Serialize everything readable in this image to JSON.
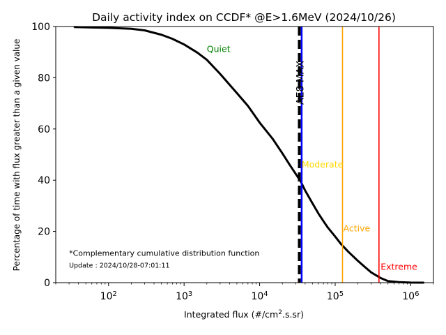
{
  "chart_data": {
    "type": "line",
    "title": "Daily activity index on CCDF* @E>1.6MeV (2024/10/26)",
    "xlabel_main": "Integrated flux (#/cm",
    "xlabel_sup": "2",
    "xlabel_tail": ".s.sr)",
    "ylabel": "Percentage of time with flux greater than a given value",
    "x_scale": "log",
    "xlim": [
      20,
      2000000
    ],
    "ylim": [
      0,
      100
    ],
    "y_ticks": [
      "0",
      "20",
      "40",
      "60",
      "80",
      "100"
    ],
    "x_ticks": [
      {
        "value": 100,
        "base": "10",
        "exp": "2"
      },
      {
        "value": 1000,
        "base": "10",
        "exp": "3"
      },
      {
        "value": 10000,
        "base": "10",
        "exp": "4"
      },
      {
        "value": 100000,
        "base": "10",
        "exp": "5"
      },
      {
        "value": 1000000,
        "base": "10",
        "exp": "6"
      }
    ],
    "grid": false,
    "series": [
      {
        "color": "#000000",
        "x": [
          35,
          100,
          200,
          300,
          500,
          700,
          1000,
          1500,
          2000,
          3000,
          5000,
          7000,
          10000,
          15000,
          20000,
          25000,
          30000,
          35000,
          40000,
          50000,
          60000,
          70000,
          80000,
          100000,
          120000,
          150000,
          200000,
          250000,
          300000,
          400000,
          500000,
          700000,
          1000000,
          1500000
        ],
        "y": [
          99.8,
          99.5,
          99.1,
          98.5,
          96.8,
          95.2,
          93.0,
          89.8,
          87.0,
          81.5,
          74.0,
          69.0,
          62.5,
          56.0,
          50.5,
          46.0,
          42.5,
          39.5,
          36.0,
          31.0,
          27.0,
          24.0,
          21.5,
          18.0,
          15.0,
          12.0,
          8.5,
          6.0,
          4.0,
          1.8,
          0.6,
          0.2,
          0.05,
          0.0
        ]
      }
    ],
    "vertical_lines": [
      {
        "x": 33500,
        "color": "#000000",
        "style": "dashed",
        "label": "AE8 MAX"
      },
      {
        "x": 36000,
        "color": "#0000ff",
        "style": "solid"
      }
    ],
    "thresholds": [
      {
        "label": "Quiet",
        "x": null,
        "label_x": 2000,
        "label_y": 90,
        "color": "#008000"
      },
      {
        "label": "Moderate",
        "x": 35000,
        "label_x": 36000,
        "label_y": 45,
        "color": "#ffd700"
      },
      {
        "label": "Active",
        "x": 125000,
        "label_x": 128000,
        "label_y": 20,
        "color": "#ffa500"
      },
      {
        "label": "Extreme",
        "x": 380000,
        "label_x": 400000,
        "label_y": 5,
        "color": "#ff0000"
      }
    ],
    "annotations": [
      {
        "text": "*Complementary cumulative distribution function",
        "x": 30,
        "y": 10.5,
        "size": 11
      },
      {
        "text": "Update : 2024/10/28-07:01:11",
        "x": 30,
        "y": 5.8,
        "size": 9.5
      }
    ]
  }
}
